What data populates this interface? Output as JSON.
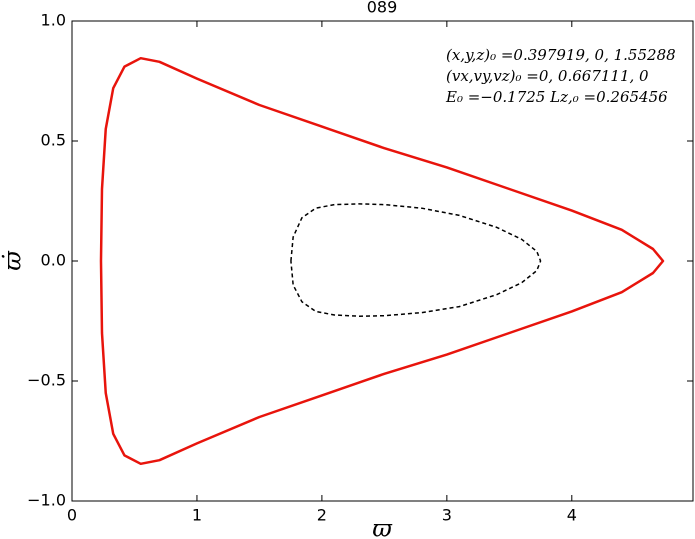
{
  "chart_data": {
    "type": "line",
    "title": "089",
    "xlabel": "ϖ",
    "ylabel": "ϖ̇",
    "xlim": [
      0,
      4.97
    ],
    "ylim": [
      -1.0,
      1.0
    ],
    "xticks": [
      0,
      1,
      2,
      3,
      4
    ],
    "yticks": [
      {
        "value": -1.0,
        "label": "−1.0"
      },
      {
        "value": -0.5,
        "label": "−0.5"
      },
      {
        "value": 0.0,
        "label": "0.0"
      },
      {
        "value": 0.5,
        "label": "0.5"
      },
      {
        "value": 1.0,
        "label": "1.0"
      }
    ],
    "annotations": [
      "(x,y,z)₀ =0.397919, 0, 1.55288",
      "(vx,vy,vz)₀ =0, 0.667111, 0",
      "E₀ =−0.1725  Lz,₀ =0.265456"
    ],
    "series": [
      {
        "color": "#e8140c",
        "linestyle": "solid",
        "x": [
          0.232,
          0.24,
          0.27,
          0.33,
          0.42,
          0.55,
          0.7,
          1.0,
          1.5,
          2.0,
          2.5,
          3.0,
          3.5,
          4.0,
          4.4,
          4.65,
          4.73,
          4.65,
          4.4,
          4.0,
          3.5,
          3.0,
          2.5,
          2.0,
          1.5,
          1.0,
          0.7,
          0.55,
          0.42,
          0.33,
          0.27,
          0.24,
          0.232
        ],
        "values": [
          0,
          0.3,
          0.55,
          0.72,
          0.81,
          0.845,
          0.83,
          0.76,
          0.65,
          0.56,
          0.47,
          0.39,
          0.3,
          0.21,
          0.13,
          0.05,
          0,
          -0.05,
          -0.13,
          -0.21,
          -0.3,
          -0.39,
          -0.47,
          -0.56,
          -0.65,
          -0.76,
          -0.83,
          -0.845,
          -0.81,
          -0.72,
          -0.55,
          -0.3,
          0
        ]
      },
      {
        "color": "#000000",
        "linestyle": "dashed",
        "x": [
          1.752,
          1.77,
          1.84,
          1.95,
          2.1,
          2.3,
          2.5,
          2.8,
          3.1,
          3.4,
          3.6,
          3.72,
          3.75,
          3.72,
          3.6,
          3.4,
          3.1,
          2.8,
          2.5,
          2.3,
          2.1,
          1.95,
          1.84,
          1.77,
          1.752
        ],
        "values": [
          0,
          0.1,
          0.18,
          0.22,
          0.235,
          0.238,
          0.235,
          0.22,
          0.19,
          0.14,
          0.09,
          0.04,
          0,
          -0.04,
          -0.09,
          -0.14,
          -0.19,
          -0.215,
          -0.228,
          -0.23,
          -0.225,
          -0.21,
          -0.17,
          -0.1,
          0
        ]
      }
    ]
  }
}
